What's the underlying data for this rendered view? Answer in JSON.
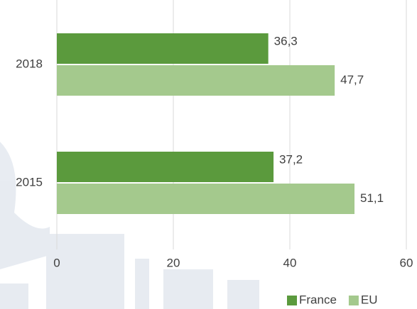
{
  "chart_data": {
    "type": "bar",
    "orientation": "horizontal",
    "categories": [
      "2018",
      "2015"
    ],
    "series": [
      {
        "name": "France",
        "color": "#5b9a3d",
        "values": [
          36.3,
          37.2
        ],
        "value_labels": [
          "36,3",
          "37,2"
        ]
      },
      {
        "name": "EU",
        "color": "#a4c98d",
        "values": [
          47.7,
          51.1
        ],
        "value_labels": [
          "47,7",
          "51,1"
        ]
      }
    ],
    "xlim": [
      0,
      60
    ],
    "xticks": [
      0,
      20,
      40,
      60
    ],
    "grid": true,
    "legend": "bottom-right"
  }
}
